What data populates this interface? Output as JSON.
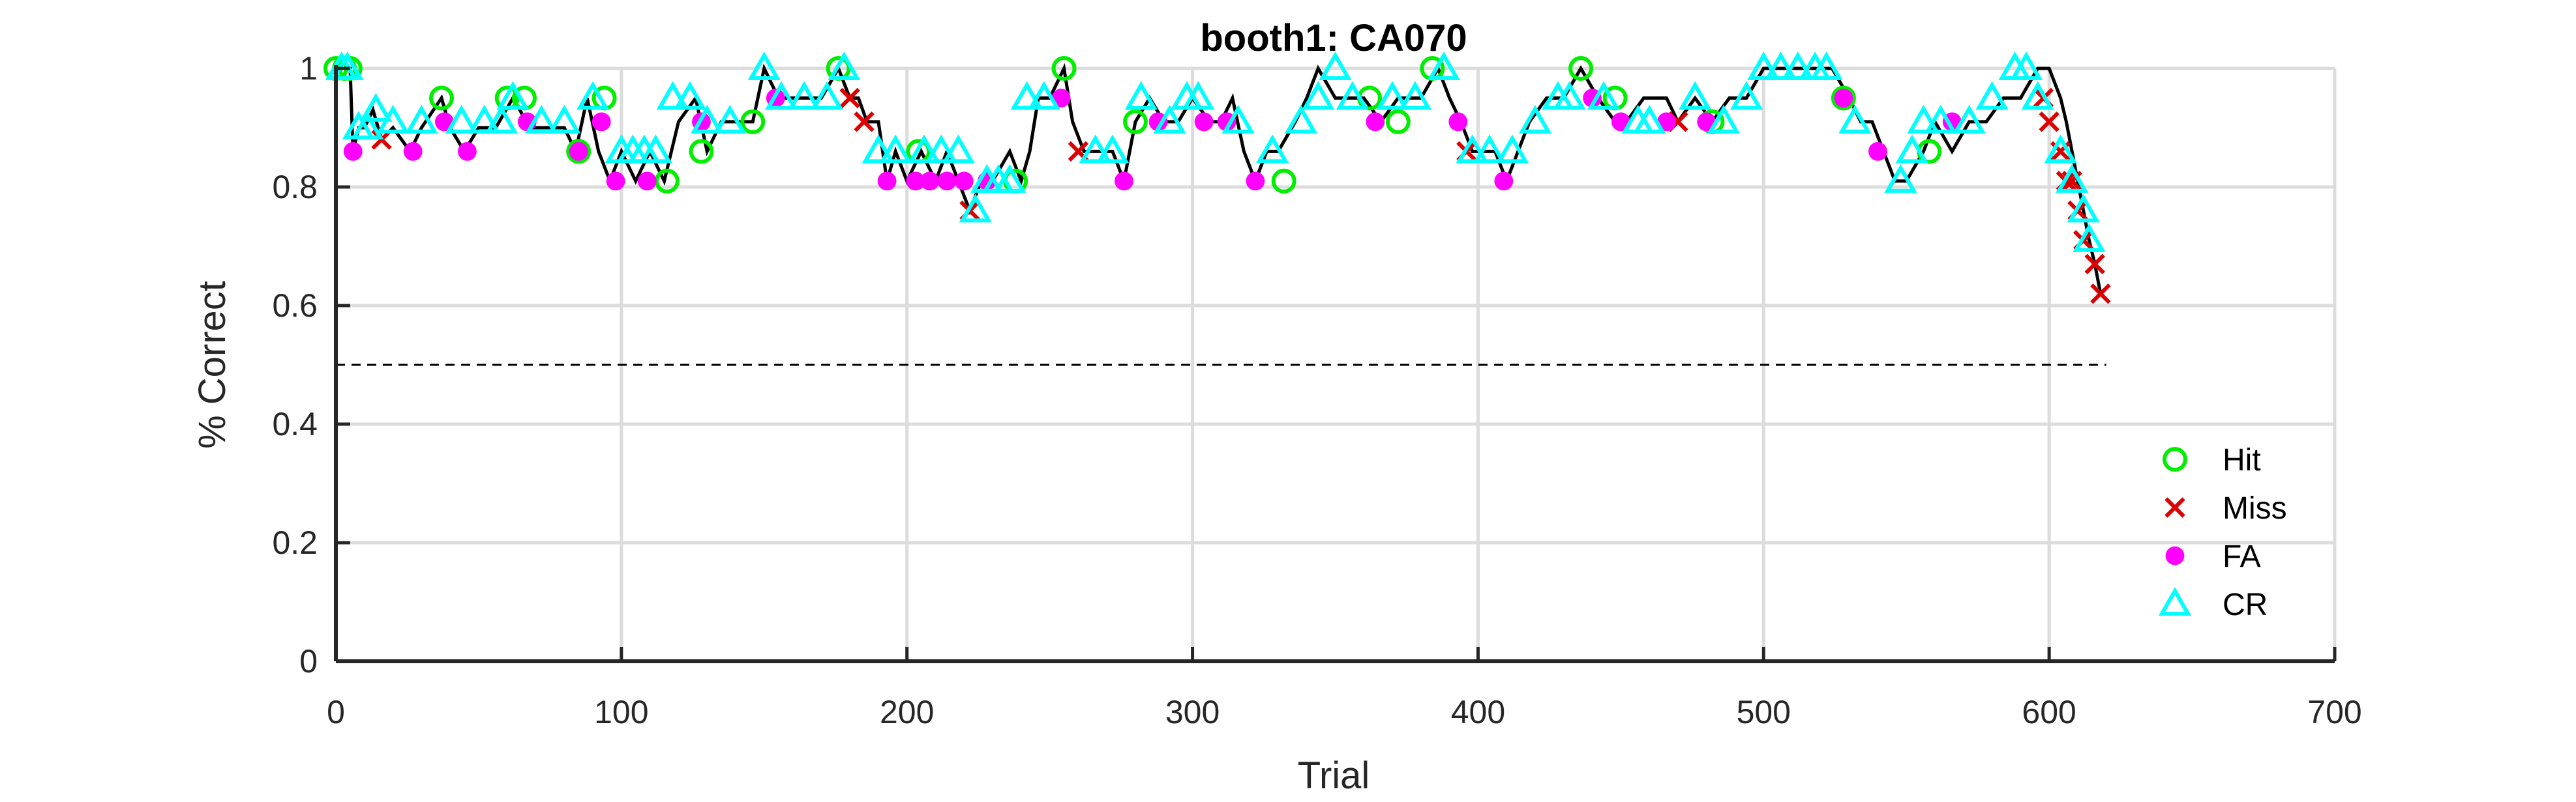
{
  "chart_data": {
    "type": "scatter",
    "title": "booth1: CA070",
    "xlabel": "Trial",
    "ylabel": "% Correct",
    "xlim": [
      0,
      700
    ],
    "ylim": [
      0,
      1
    ],
    "xticks": [
      0,
      100,
      200,
      300,
      400,
      500,
      600,
      700
    ],
    "yticks": [
      0,
      0.2,
      0.4,
      0.6,
      0.8,
      1
    ],
    "xtick_labels": [
      "0",
      "100",
      "200",
      "300",
      "400",
      "500",
      "600",
      "700"
    ],
    "ytick_labels": [
      "0",
      "0.2",
      "0.4",
      "0.6",
      "0.8",
      "1"
    ],
    "grid": true,
    "legend_position": "bottom-right",
    "chance_line": {
      "y": 0.5,
      "x": [
        0,
        620
      ],
      "style": "dashed"
    },
    "colors": {
      "hit": "#00ee00",
      "miss": "#dd0000",
      "fa": "#ff00ff",
      "cr": "#00ffff",
      "line": "#000000"
    },
    "line": {
      "x": [
        0,
        5,
        6,
        8,
        10,
        13,
        16,
        20,
        26,
        30,
        37,
        40,
        45,
        50,
        56,
        62,
        68,
        72,
        80,
        84,
        88,
        92,
        96,
        100,
        105,
        110,
        115,
        120,
        126,
        130,
        135,
        140,
        146,
        150,
        155,
        160,
        170,
        176,
        180,
        183,
        186,
        190,
        193,
        196,
        200,
        205,
        210,
        214,
        218,
        222,
        226,
        230,
        236,
        240,
        243,
        246,
        250,
        255,
        258,
        262,
        266,
        272,
        276,
        280,
        285,
        290,
        295,
        300,
        306,
        310,
        314,
        318,
        322,
        326,
        330,
        336,
        340,
        344,
        350,
        356,
        360,
        366,
        372,
        380,
        386,
        390,
        394,
        398,
        402,
        406,
        410,
        414,
        418,
        424,
        430,
        436,
        442,
        448,
        452,
        458,
        466,
        470,
        476,
        482,
        488,
        494,
        500,
        506,
        512,
        518,
        524,
        530,
        534,
        538,
        542,
        546,
        550,
        556,
        560,
        566,
        572,
        578,
        584,
        590,
        596,
        600,
        604,
        606,
        608,
        610,
        612,
        614,
        616,
        618
      ],
      "y": [
        1,
        1,
        0.86,
        0.9,
        0.9,
        0.93,
        0.88,
        0.9,
        0.86,
        0.9,
        0.95,
        0.9,
        0.86,
        0.9,
        0.9,
        0.95,
        0.9,
        0.9,
        0.9,
        0.86,
        0.95,
        0.86,
        0.81,
        0.86,
        0.81,
        0.86,
        0.81,
        0.91,
        0.95,
        0.86,
        0.91,
        0.91,
        0.91,
        1,
        0.95,
        0.95,
        0.95,
        1,
        0.95,
        0.95,
        0.91,
        0.91,
        0.81,
        0.86,
        0.81,
        0.86,
        0.81,
        0.86,
        0.81,
        0.76,
        0.81,
        0.81,
        0.86,
        0.81,
        0.86,
        0.95,
        0.95,
        1,
        0.91,
        0.86,
        0.86,
        0.86,
        0.81,
        0.91,
        0.95,
        0.91,
        0.91,
        0.95,
        0.91,
        0.91,
        0.95,
        0.86,
        0.81,
        0.86,
        0.86,
        0.91,
        0.95,
        1,
        0.95,
        0.95,
        0.95,
        0.91,
        0.95,
        0.95,
        1,
        0.95,
        0.91,
        0.86,
        0.86,
        0.86,
        0.81,
        0.86,
        0.91,
        0.95,
        0.95,
        1,
        0.95,
        0.91,
        0.91,
        0.95,
        0.95,
        0.91,
        0.95,
        0.91,
        0.95,
        0.95,
        1,
        1,
        1,
        1,
        1,
        0.95,
        0.91,
        0.91,
        0.86,
        0.81,
        0.81,
        0.86,
        0.91,
        0.86,
        0.91,
        0.91,
        0.95,
        0.95,
        1,
        1,
        0.95,
        0.91,
        0.86,
        0.81,
        0.76,
        0.71,
        0.67,
        0.62
      ]
    },
    "series": [
      {
        "name": "Hit",
        "marker": "circle",
        "x": [
          0,
          3,
          5,
          37,
          60,
          66,
          85,
          94,
          116,
          128,
          146,
          176,
          204,
          238,
          255,
          280,
          332,
          362,
          372,
          384,
          436,
          448,
          482,
          528,
          558
        ],
        "y": [
          1,
          1,
          1,
          0.95,
          0.95,
          0.95,
          0.86,
          0.95,
          0.81,
          0.86,
          0.91,
          1,
          0.86,
          0.81,
          1,
          0.91,
          0.81,
          0.95,
          0.91,
          1,
          1,
          0.95,
          0.91,
          0.95,
          0.86
        ]
      },
      {
        "name": "Miss",
        "marker": "x",
        "x": [
          16,
          180,
          185,
          222,
          260,
          396,
          470,
          598,
          600,
          604,
          606,
          608,
          610,
          612,
          616,
          618
        ],
        "y": [
          0.88,
          0.95,
          0.91,
          0.76,
          0.86,
          0.86,
          0.91,
          0.95,
          0.91,
          0.86,
          0.81,
          0.81,
          0.76,
          0.71,
          0.67,
          0.62
        ]
      },
      {
        "name": "FA",
        "marker": "dot",
        "x": [
          6,
          27,
          38,
          46,
          67,
          85,
          93,
          98,
          109,
          128,
          154,
          193,
          203,
          208,
          214,
          220,
          228,
          254,
          276,
          288,
          304,
          312,
          322,
          364,
          393,
          409,
          440,
          450,
          466,
          480,
          528,
          540,
          566
        ],
        "y": [
          0.86,
          0.86,
          0.91,
          0.86,
          0.91,
          0.86,
          0.91,
          0.81,
          0.81,
          0.91,
          0.95,
          0.81,
          0.81,
          0.81,
          0.81,
          0.81,
          0.81,
          0.95,
          0.81,
          0.91,
          0.91,
          0.91,
          0.81,
          0.91,
          0.91,
          0.81,
          0.95,
          0.91,
          0.91,
          0.91,
          0.95,
          0.86,
          0.91
        ]
      },
      {
        "name": "CR",
        "marker": "triangle",
        "x": [
          2,
          4,
          8,
          11,
          14,
          20,
          30,
          44,
          52,
          58,
          62,
          72,
          80,
          90,
          100,
          104,
          108,
          112,
          118,
          124,
          130,
          138,
          150,
          156,
          164,
          172,
          178,
          190,
          196,
          206,
          212,
          218,
          224,
          228,
          232,
          236,
          242,
          248,
          266,
          272,
          282,
          292,
          298,
          302,
          316,
          328,
          338,
          344,
          350,
          356,
          370,
          378,
          388,
          398,
          404,
          412,
          420,
          428,
          432,
          444,
          456,
          460,
          476,
          486,
          494,
          500,
          506,
          512,
          518,
          522,
          532,
          548,
          552,
          556,
          562,
          572,
          580,
          588,
          592,
          596,
          604,
          608,
          612,
          614
        ],
        "y": [
          1,
          1,
          0.9,
          0.9,
          0.93,
          0.91,
          0.91,
          0.91,
          0.91,
          0.91,
          0.95,
          0.91,
          0.91,
          0.95,
          0.86,
          0.86,
          0.86,
          0.86,
          0.95,
          0.95,
          0.91,
          0.91,
          1,
          0.95,
          0.95,
          0.95,
          1,
          0.86,
          0.86,
          0.86,
          0.86,
          0.86,
          0.76,
          0.81,
          0.81,
          0.81,
          0.95,
          0.95,
          0.86,
          0.86,
          0.95,
          0.91,
          0.95,
          0.95,
          0.91,
          0.86,
          0.91,
          0.95,
          1,
          0.95,
          0.95,
          0.95,
          1,
          0.86,
          0.86,
          0.86,
          0.91,
          0.95,
          0.95,
          0.95,
          0.91,
          0.91,
          0.95,
          0.91,
          0.95,
          1,
          1,
          1,
          1,
          1,
          0.91,
          0.81,
          0.86,
          0.91,
          0.91,
          0.91,
          0.95,
          1,
          1,
          0.95,
          0.86,
          0.81,
          0.76,
          0.71
        ]
      }
    ],
    "legend": [
      "Hit",
      "Miss",
      "FA",
      "CR"
    ]
  }
}
